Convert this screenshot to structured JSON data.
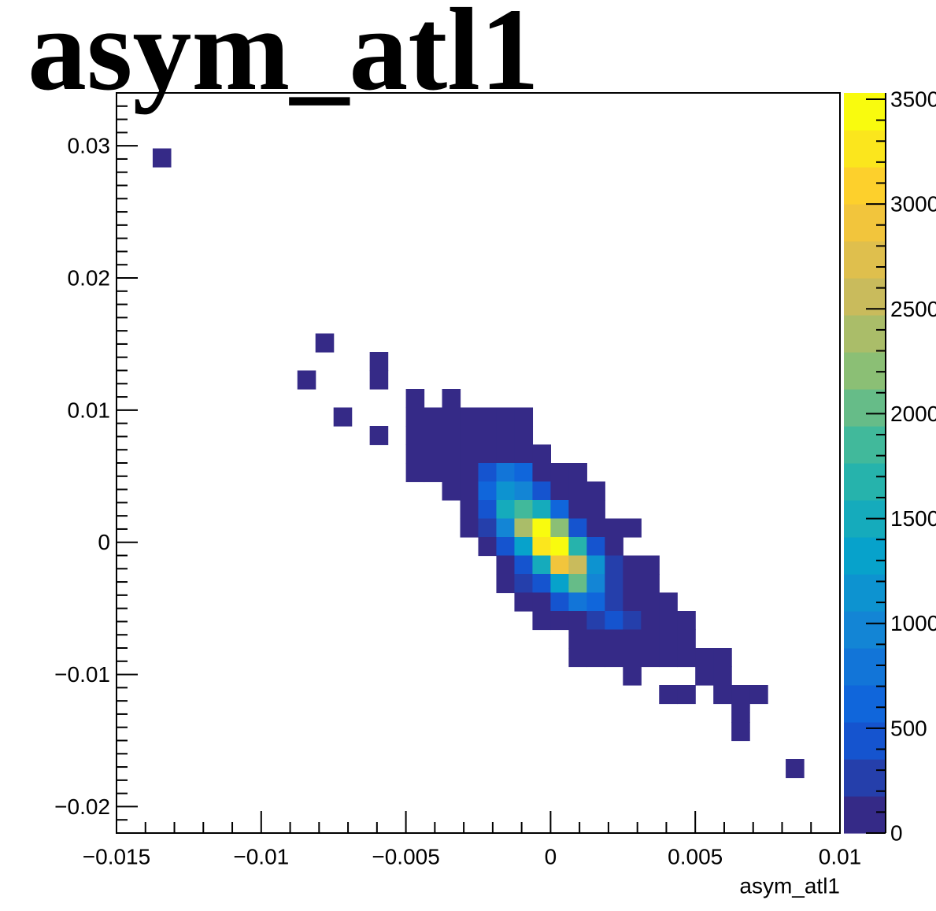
{
  "chart_data": {
    "type": "heatmap",
    "title": "asym_atl1",
    "x_label": "asym_atl1",
    "xlim": [
      -0.015,
      0.01
    ],
    "xticks": [
      {
        "value": -0.015,
        "label": "−0.015"
      },
      {
        "value": -0.01,
        "label": "−0.01"
      },
      {
        "value": -0.005,
        "label": "−0.005"
      },
      0,
      0.005,
      0.01
    ],
    "ylim": [
      -0.022,
      0.034
    ],
    "yticks": [
      {
        "value": -0.02,
        "label": "−0.02"
      },
      {
        "value": -0.01,
        "label": "−0.01"
      },
      0,
      0.01,
      0.02,
      0.03
    ],
    "zlim": [
      0,
      3530
    ],
    "zticks": [
      0,
      500,
      1000,
      1500,
      2000,
      2500,
      3000,
      3500
    ],
    "xbins": 40,
    "ybins": 40,
    "contours": 20,
    "palette": [
      "#352a87",
      "#0f5cdd",
      "#1481d6",
      "#06a4ca",
      "#2eb7a4",
      "#87bf77",
      "#d1bb59",
      "#fec832",
      "#f9fb0e"
    ],
    "x": [
      -0.0134375,
      -0.0078125,
      -0.0059375,
      -0.0084375,
      -0.0059375,
      -0.0046875,
      -0.0034375,
      -0.0071875,
      -0.0046875,
      -0.0040625,
      -0.0034375,
      -0.0028125,
      -0.0021875,
      -0.0015625,
      -0.0009375,
      -0.0059375,
      -0.0046875,
      -0.0040625,
      -0.0034375,
      -0.0028125,
      -0.0021875,
      -0.0015625,
      -0.0009375,
      -0.0046875,
      -0.0040625,
      -0.0034375,
      -0.0028125,
      -0.0021875,
      -0.0015625,
      -0.0009375,
      -0.0003125,
      -0.0046875,
      -0.0040625,
      -0.0034375,
      -0.0028125,
      -0.0021875,
      -0.0015625,
      -0.0009375,
      -0.0003125,
      0.0003125,
      0.0009375,
      -0.0034375,
      -0.0028125,
      -0.0021875,
      -0.0015625,
      -0.0009375,
      -0.0003125,
      0.0003125,
      0.0009375,
      0.0015625,
      -0.0028125,
      -0.0021875,
      -0.0015625,
      -0.0009375,
      -0.0003125,
      0.0003125,
      0.0009375,
      0.0015625,
      -0.0028125,
      -0.0021875,
      -0.0015625,
      -0.0009375,
      -0.0003125,
      0.0003125,
      0.0009375,
      0.0015625,
      0.0021875,
      0.0028125,
      -0.0021875,
      -0.0015625,
      -0.0009375,
      -0.0003125,
      0.0003125,
      0.0009375,
      0.0015625,
      0.0021875,
      -0.0015625,
      -0.0009375,
      -0.0003125,
      0.0003125,
      0.0009375,
      0.0015625,
      0.0021875,
      0.0028125,
      0.0034375,
      -0.0015625,
      -0.0009375,
      -0.0003125,
      0.0003125,
      0.0009375,
      0.0015625,
      0.0021875,
      0.0028125,
      0.0034375,
      -0.0009375,
      -0.0003125,
      0.0003125,
      0.0009375,
      0.0015625,
      0.0021875,
      0.0028125,
      0.0034375,
      0.0040625,
      -0.0003125,
      0.0003125,
      0.0009375,
      0.0015625,
      0.0021875,
      0.0028125,
      0.0034375,
      0.0040625,
      0.0046875,
      0.0009375,
      0.0015625,
      0.0021875,
      0.0028125,
      0.0034375,
      0.0040625,
      0.0046875,
      0.0009375,
      0.0015625,
      0.0021875,
      0.0028125,
      0.0034375,
      0.0040625,
      0.0046875,
      0.0053125,
      0.0059375,
      0.0028125,
      0.0053125,
      0.0059375,
      0.0040625,
      0.0046875,
      0.0059375,
      0.0065625,
      0.0071875,
      0.0065625,
      0.0065625,
      0.0084375
    ],
    "y": [
      0.0291,
      0.0151,
      0.0137,
      0.0123,
      0.0123,
      0.0109,
      0.0109,
      0.0095,
      0.0095,
      0.0095,
      0.0095,
      0.0095,
      0.0095,
      0.0095,
      0.0095,
      0.0081,
      0.0081,
      0.0081,
      0.0081,
      0.0081,
      0.0081,
      0.0081,
      0.0081,
      0.0067,
      0.0067,
      0.0067,
      0.0067,
      0.0067,
      0.0067,
      0.0067,
      0.0067,
      0.0053,
      0.0053,
      0.0053,
      0.0053,
      0.0053,
      0.0053,
      0.0053,
      0.0053,
      0.0053,
      0.0053,
      0.0039,
      0.0039,
      0.0039,
      0.0039,
      0.0039,
      0.0039,
      0.0039,
      0.0039,
      0.0039,
      0.0025,
      0.0025,
      0.0025,
      0.0025,
      0.0025,
      0.0025,
      0.0025,
      0.0025,
      0.0011,
      0.0011,
      0.0011,
      0.0011,
      0.0011,
      0.0011,
      0.0011,
      0.0011,
      0.0011,
      0.0011,
      -0.0003,
      -0.0003,
      -0.0003,
      -0.0003,
      -0.0003,
      -0.0003,
      -0.0003,
      -0.0003,
      -0.0017,
      -0.0017,
      -0.0017,
      -0.0017,
      -0.0017,
      -0.0017,
      -0.0017,
      -0.0017,
      -0.0017,
      -0.0031,
      -0.0031,
      -0.0031,
      -0.0031,
      -0.0031,
      -0.0031,
      -0.0031,
      -0.0031,
      -0.0031,
      -0.0045,
      -0.0045,
      -0.0045,
      -0.0045,
      -0.0045,
      -0.0045,
      -0.0045,
      -0.0045,
      -0.0045,
      -0.0059,
      -0.0059,
      -0.0059,
      -0.0059,
      -0.0059,
      -0.0059,
      -0.0059,
      -0.0059,
      -0.0059,
      -0.0073,
      -0.0073,
      -0.0073,
      -0.0073,
      -0.0073,
      -0.0073,
      -0.0073,
      -0.0087,
      -0.0087,
      -0.0087,
      -0.0087,
      -0.0087,
      -0.0087,
      -0.0087,
      -0.0087,
      -0.0087,
      -0.0101,
      -0.0101,
      -0.0101,
      -0.0115,
      -0.0115,
      -0.0115,
      -0.0115,
      -0.0115,
      -0.0129,
      -0.0143,
      -0.0171
    ],
    "values": [
      10,
      10,
      10,
      10,
      10,
      10,
      10,
      10,
      20,
      10,
      30,
      20,
      40,
      30,
      20,
      10,
      30,
      40,
      50,
      60,
      80,
      70,
      50,
      20,
      50,
      90,
      120,
      150,
      140,
      100,
      60,
      10,
      30,
      80,
      140,
      450,
      800,
      550,
      140,
      80,
      30,
      50,
      120,
      550,
      1100,
      950,
      400,
      140,
      80,
      40,
      100,
      400,
      1500,
      1900,
      1500,
      550,
      160,
      60,
      60,
      350,
      900,
      2350,
      3400,
      2250,
      500,
      140,
      50,
      20,
      120,
      450,
      1300,
      3300,
      3520,
      1700,
      450,
      100,
      100,
      400,
      1550,
      3000,
      2550,
      1100,
      300,
      80,
      30,
      40,
      180,
      500,
      1300,
      1950,
      1000,
      350,
      100,
      40,
      60,
      140,
      400,
      750,
      700,
      250,
      100,
      50,
      20,
      30,
      80,
      140,
      300,
      450,
      180,
      80,
      40,
      20,
      50,
      80,
      120,
      100,
      60,
      30,
      20,
      20,
      40,
      60,
      50,
      40,
      30,
      20,
      10,
      10,
      10,
      10,
      10,
      10,
      10,
      10,
      10,
      10,
      10,
      10,
      10
    ]
  }
}
